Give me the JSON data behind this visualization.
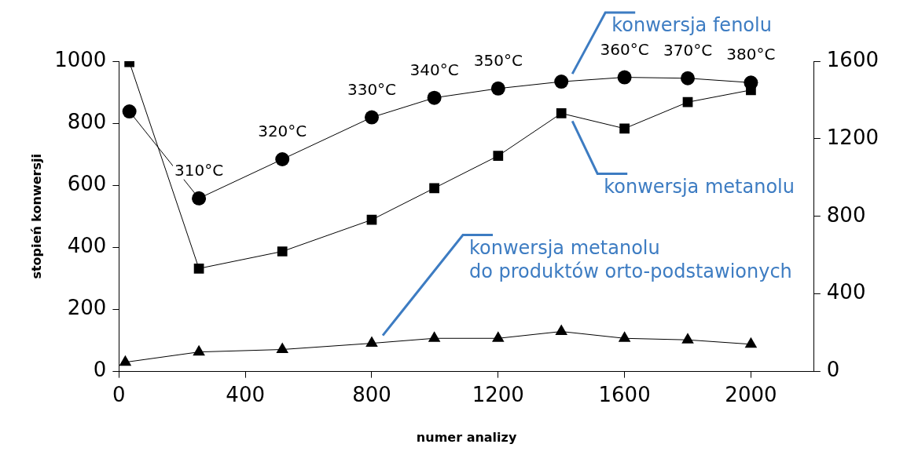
{
  "chart_data": {
    "type": "line",
    "xlabel": "numer analizy",
    "ylabel": "stopień konwersji",
    "xlim": [
      0,
      2200
    ],
    "xticks": [
      0,
      400,
      800,
      1200,
      1600,
      2000
    ],
    "ylim": [
      0,
      1000
    ],
    "yticks": [
      0,
      200,
      400,
      600,
      800,
      1000
    ],
    "y2lim": [
      0,
      1600
    ],
    "y2ticks": [
      0,
      400,
      800,
      1200,
      1600
    ],
    "grid": false,
    "legend": false,
    "line_style": "solid",
    "series": [
      {
        "name": "konwersja fenolu",
        "color": "#000000",
        "marker": "circle",
        "x": [
          33,
          253,
          517,
          800,
          998,
          1200,
          1400,
          1600,
          1800,
          2000
        ],
        "values": [
          838,
          558,
          684,
          819,
          882,
          912,
          934,
          948,
          945,
          931
        ]
      },
      {
        "name": "konwersja metanolu",
        "color": "#000000",
        "marker": "square",
        "x": [
          33,
          253,
          517,
          800,
          998,
          1200,
          1400,
          1600,
          1800,
          2000
        ],
        "values": [
          997,
          332,
          387,
          489,
          591,
          695,
          832,
          783,
          868,
          907
        ]
      },
      {
        "name": "konwersja metanolu do produktów orto-podstawionych",
        "color": "#000000",
        "marker": "triangle",
        "x": [
          20,
          253,
          517,
          800,
          998,
          1200,
          1400,
          1600,
          1800,
          2000
        ],
        "values": [
          30,
          63,
          71,
          91,
          107,
          107,
          129,
          107,
          102,
          88
        ]
      }
    ],
    "annotations": [
      {
        "text": "310°C",
        "x": 253,
        "y": 558
      },
      {
        "text": "320°C",
        "x": 517,
        "y": 684
      },
      {
        "text": "330°C",
        "x": 800,
        "y": 819
      },
      {
        "text": "340°C",
        "x": 998,
        "y": 882
      },
      {
        "text": "350°C",
        "x": 1200,
        "y": 912
      },
      {
        "text": "360°C",
        "x": 1600,
        "y": 948
      },
      {
        "text": "370°C",
        "x": 1800,
        "y": 945
      },
      {
        "text": "380°C",
        "x": 2000,
        "y": 931
      }
    ]
  }
}
